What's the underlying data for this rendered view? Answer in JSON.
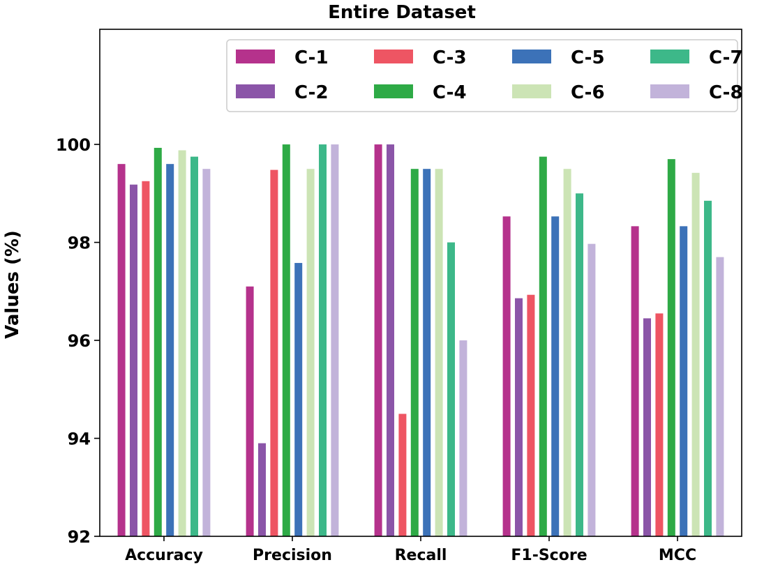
{
  "chart_data": {
    "type": "bar",
    "title": "Entire Dataset",
    "xlabel": "",
    "ylabel": "Values (%)",
    "ylim": [
      92,
      102.35
    ],
    "yticks": [
      92,
      94,
      96,
      98,
      100
    ],
    "grid": false,
    "legend": {
      "position": "top-right",
      "columns": 4
    },
    "categories": [
      "Accuracy",
      "Precision",
      "Recall",
      "F1-Score",
      "MCC"
    ],
    "series": [
      {
        "name": "C-1",
        "color": "#B5328C",
        "values": [
          99.6,
          97.1,
          100.0,
          98.53,
          98.33
        ]
      },
      {
        "name": "C-2",
        "color": "#8B55A8",
        "values": [
          99.18,
          93.9,
          100.0,
          96.86,
          96.45
        ]
      },
      {
        "name": "C-3",
        "color": "#EE5563",
        "values": [
          99.25,
          99.48,
          94.5,
          96.93,
          96.55
        ]
      },
      {
        "name": "C-4",
        "color": "#2EAA46",
        "values": [
          99.93,
          100.0,
          99.5,
          99.75,
          99.7
        ]
      },
      {
        "name": "C-5",
        "color": "#3C72B8",
        "values": [
          99.6,
          97.58,
          99.5,
          98.53,
          98.33
        ]
      },
      {
        "name": "C-6",
        "color": "#CCE4B5",
        "values": [
          99.88,
          99.5,
          99.5,
          99.5,
          99.42
        ]
      },
      {
        "name": "C-7",
        "color": "#3DB889",
        "values": [
          99.75,
          100.0,
          98.0,
          99.0,
          98.85
        ]
      },
      {
        "name": "C-8",
        "color": "#C2B3DA",
        "values": [
          99.5,
          100.0,
          96.0,
          97.97,
          97.7
        ]
      }
    ]
  }
}
